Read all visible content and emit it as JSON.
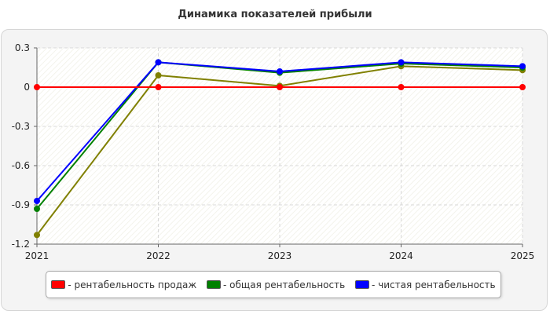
{
  "chart_data": {
    "type": "line",
    "title": "Динамика показателей прибыли",
    "categories": [
      "2021",
      "2022",
      "2023",
      "2024",
      "2025"
    ],
    "ylim": [
      -1.2,
      0.3
    ],
    "yticks": [
      "0.3",
      "0",
      "-0.3",
      "-0.6",
      "-0.9",
      "-1.2"
    ],
    "ytick_values": [
      0.3,
      0,
      -0.3,
      -0.6,
      -0.9,
      -1.2
    ],
    "grid": true,
    "legend_position": "bottom",
    "series": [
      {
        "name": "рентабельность продаж",
        "color": "#ff0000",
        "values": [
          0.0,
          0.0,
          0.0,
          0.0,
          0.0
        ]
      },
      {
        "name": "общая рентабельность",
        "color": "#008000",
        "values": [
          -0.93,
          0.19,
          0.11,
          0.18,
          0.15
        ]
      },
      {
        "name": "чистая рентабельность",
        "color": "#0000ff",
        "values": [
          -0.87,
          0.19,
          0.12,
          0.19,
          0.16
        ]
      },
      {
        "color": "#808000",
        "values": [
          -1.13,
          0.09,
          0.01,
          0.16,
          0.13
        ]
      }
    ]
  },
  "legend": {
    "items": [
      {
        "label": " - рентабельность продаж",
        "color": "#ff0000"
      },
      {
        "label": " - общая рентабельность",
        "color": "#008000"
      },
      {
        "label": " - чистая рентабельность",
        "color": "#0000ff"
      }
    ]
  }
}
